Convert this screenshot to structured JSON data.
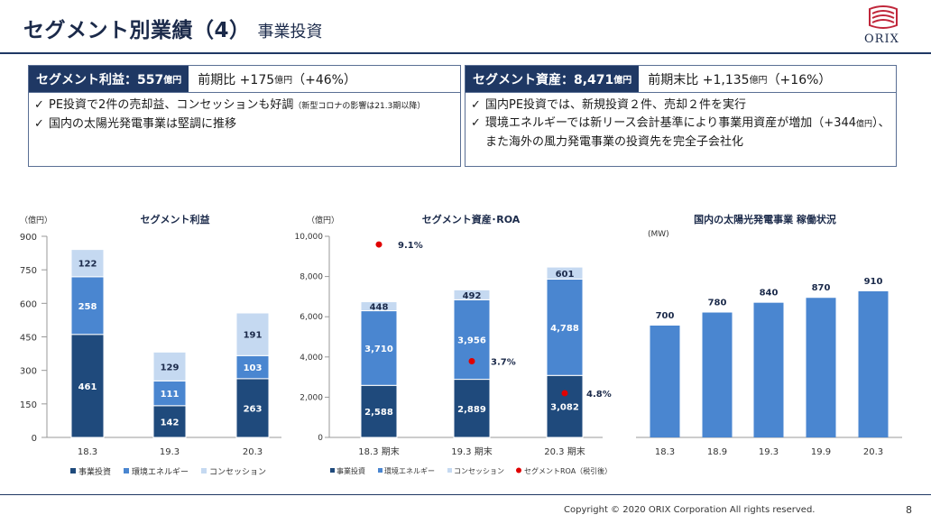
{
  "header": {
    "title": "セグメント別業績（4）",
    "subtitle": "事業投資",
    "logo_text": "ORIX"
  },
  "left_panel": {
    "label": "セグメント利益：557",
    "label_unit": "億円",
    "value_prefix": "前期比 +175",
    "value_unit": "億円",
    "value_suffix": "（+46%）",
    "bullets": [
      {
        "text": "PE投資で2件の売却益、コンセッションも好調",
        "note": "（新型コロナの影響は21.3期以降）"
      },
      {
        "text": "国内の太陽光発電事業は堅調に推移",
        "note": ""
      }
    ]
  },
  "right_panel": {
    "label": "セグメント資産：8,471",
    "label_unit": "億円",
    "value_prefix": "前期末比 +1,135",
    "value_unit": "億円",
    "value_suffix": "（+16%）",
    "bullet1": "国内PE投資では、新規投資２件、売却２件を実行",
    "bullet2_a": "環境エネルギーでは新リース会計基準により事業用資産が増加（+344",
    "bullet2_unit": "億円",
    "bullet2_b": "）、また海外の風力発電事業の投資先を完全子会社化"
  },
  "colors": {
    "navy": "#1f4a7c",
    "mid": "#4a86d0",
    "light": "#c5d9f1",
    "solar": "#4a86d0",
    "roa": "#e00000"
  },
  "chart_data": [
    {
      "type": "bar",
      "stacked": true,
      "title": "セグメント利益",
      "unit_label": "（億円）",
      "categories": [
        "18.3",
        "19.3",
        "20.3"
      ],
      "ylim": [
        0,
        900
      ],
      "yticks": [
        "0",
        "150",
        "300",
        "450",
        "600",
        "750",
        "900"
      ],
      "series": [
        {
          "name": "事業投資",
          "values": [
            461,
            142,
            263
          ]
        },
        {
          "name": "環境エネルギー",
          "values": [
            258,
            111,
            103
          ]
        },
        {
          "name": "コンセッション",
          "values": [
            122,
            129,
            191
          ]
        }
      ],
      "legend": "bottom"
    },
    {
      "type": "bar",
      "stacked": true,
      "title": "セグメント資産･ROA",
      "unit_label": "（億円）",
      "categories": [
        "18.3 期末",
        "19.3 期末",
        "20.3 期末"
      ],
      "ylim": [
        0,
        10000
      ],
      "yticks": [
        "0",
        "2,000",
        "4,000",
        "6,000",
        "8,000",
        "10,000"
      ],
      "series": [
        {
          "name": "事業投資",
          "values": [
            2588,
            2889,
            3082
          ]
        },
        {
          "name": "環境エネルギー",
          "values": [
            3710,
            3956,
            4788
          ]
        },
        {
          "name": "コンセッション",
          "values": [
            448,
            492,
            601
          ]
        }
      ],
      "labels": [
        [
          "2,588",
          "2,889",
          "3,082"
        ],
        [
          "3,710",
          "3,956",
          "4,788"
        ],
        [
          "448",
          "492",
          "601"
        ]
      ],
      "roa": {
        "name": "セグメントROA（税引後）",
        "values": [
          9.1,
          3.7,
          4.8
        ],
        "labels": [
          "9.1%",
          "3.7%",
          "4.8%"
        ]
      },
      "legend": "bottom"
    },
    {
      "type": "bar",
      "title": "国内の太陽光発電事業 稼働状況",
      "unit_label": "(MW)",
      "categories": [
        "18.3",
        "18.9",
        "19.3",
        "19.9",
        "20.3"
      ],
      "values": [
        700,
        780,
        840,
        870,
        910
      ]
    }
  ],
  "footer": {
    "copyright": "Copyright © 2020 ORIX Corporation All rights reserved.",
    "page": "8"
  }
}
